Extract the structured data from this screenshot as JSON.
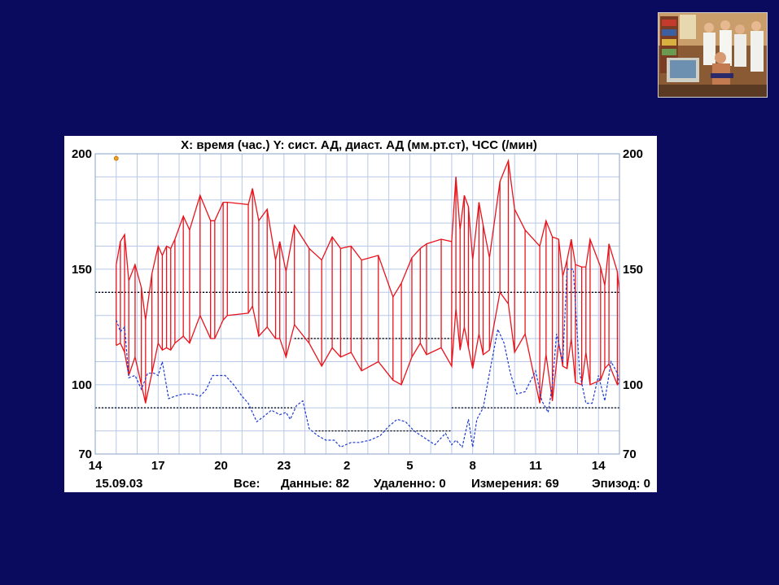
{
  "photo": {
    "icon": "doctors-with-patient-photo"
  },
  "chart_data": {
    "type": "line",
    "title": "X: время (час.)  Y: сист. АД, диаст. АД (мм.рт.ст), ЧСС (/мин)",
    "xlabel": "время (час.)",
    "ylabel": "сист. АД, диаст. АД (мм.рт.ст), ЧСС (/мин)",
    "ylim": [
      70,
      200
    ],
    "y_ticks": [
      70,
      100,
      150,
      200
    ],
    "x_ticks": [
      "14",
      "17",
      "20",
      "23",
      "2",
      "5",
      "8",
      "11",
      "14"
    ],
    "x_tick_hours": [
      14,
      17,
      20,
      23,
      26,
      29,
      32,
      35,
      38
    ],
    "xlim": [
      14,
      39
    ],
    "grid": true,
    "colors": {
      "bp": "#e8141c",
      "hr": "#1e3cd2",
      "threshold": "#000000",
      "marker": "#f0a020",
      "background": "#0a0a5e"
    },
    "footer": {
      "date": "15.09.03",
      "all": "Все:",
      "data_label": "Данные: 82",
      "deleted": "Удаленно: 0",
      "measurements": "Измерения: 69",
      "episode": "Эпизод: 0"
    },
    "marker_point": {
      "x": 15,
      "y": 198
    },
    "thresholds": [
      {
        "y": 140,
        "x": [
          14,
          23.5
        ]
      },
      {
        "y": 120,
        "x": [
          23.5,
          31
        ]
      },
      {
        "y": 140,
        "x": [
          31,
          39
        ]
      },
      {
        "y": 90,
        "x": [
          14,
          23.5
        ]
      },
      {
        "y": 80,
        "x": [
          24.5,
          31
        ]
      },
      {
        "y": 90,
        "x": [
          31,
          39
        ]
      }
    ],
    "series": [
      {
        "name": "сист. АД",
        "x": [
          15,
          15.2,
          15.4,
          15.6,
          15.9,
          16.2,
          16.4,
          16.7,
          17,
          17.2,
          17.4,
          17.6,
          17.8,
          18.2,
          18.5,
          19,
          19.5,
          19.7,
          20.1,
          20.3,
          21.3,
          21.5,
          21.8,
          22.2,
          22.6,
          22.8,
          23.1,
          23.5,
          24.2,
          24.8,
          25.3,
          25.7,
          26.2,
          26.7,
          27.5,
          28.2,
          28.6,
          29.1,
          29.5,
          29.8,
          30.5,
          31,
          31.2,
          31.4,
          31.6,
          31.8,
          32,
          32.3,
          32.5,
          32.8,
          33.3,
          33.7,
          34,
          34.5,
          35.2,
          35.5,
          35.8,
          36.1,
          36.3,
          36.5,
          36.7,
          36.9,
          37.2,
          37.4,
          37.6,
          38.1,
          38.3,
          38.5,
          38.9,
          39
        ],
        "values": [
          152,
          162,
          165,
          145,
          152,
          142,
          128,
          148,
          160,
          156,
          160,
          159,
          163,
          173,
          167,
          182,
          171,
          171,
          179,
          179,
          178,
          185,
          171,
          176,
          154,
          162,
          149,
          169,
          159,
          154,
          164,
          159,
          160,
          154,
          156,
          138,
          144,
          155,
          159,
          161,
          163,
          162,
          190,
          167,
          182,
          177,
          154,
          179,
          169,
          155,
          188,
          197,
          176,
          167,
          160,
          171,
          164,
          163,
          147,
          154,
          163,
          152,
          151,
          151,
          163,
          151,
          143,
          161,
          149,
          140
        ]
      },
      {
        "name": "диаст. АД",
        "x": [
          15,
          15.2,
          15.4,
          15.6,
          15.9,
          16.2,
          16.4,
          16.7,
          17,
          17.2,
          17.4,
          17.6,
          17.8,
          18.2,
          18.5,
          19,
          19.5,
          19.7,
          20.1,
          20.3,
          21.3,
          21.5,
          21.8,
          22.2,
          22.6,
          22.8,
          23.1,
          23.5,
          24.2,
          24.8,
          25.3,
          25.7,
          26.2,
          26.7,
          27.5,
          28.2,
          28.6,
          29.1,
          29.5,
          29.8,
          30.5,
          31,
          31.2,
          31.4,
          31.6,
          31.8,
          32,
          32.3,
          32.5,
          32.8,
          33.3,
          33.7,
          34,
          34.5,
          35.2,
          35.5,
          35.8,
          36.1,
          36.3,
          36.5,
          36.7,
          36.9,
          37.2,
          37.4,
          37.6,
          38.1,
          38.3,
          38.5,
          38.9,
          39
        ],
        "values": [
          117,
          118,
          114,
          104,
          112,
          100,
          92,
          105,
          118,
          115,
          116,
          115,
          118,
          121,
          118,
          130,
          120,
          120,
          128,
          130,
          131,
          134,
          121,
          125,
          120,
          120,
          112,
          126,
          118,
          108,
          116,
          112,
          114,
          106,
          110,
          102,
          100,
          112,
          118,
          113,
          116,
          108,
          133,
          115,
          125,
          116,
          107,
          122,
          113,
          115,
          140,
          135,
          114,
          122,
          92,
          113,
          93,
          118,
          108,
          107,
          120,
          101,
          100,
          114,
          100,
          102,
          107,
          109,
          100,
          101
        ]
      },
      {
        "name": "ЧСС",
        "x": [
          15,
          15.2,
          15.4,
          15.6,
          15.9,
          16.2,
          16.5,
          16.8,
          17,
          17.2,
          17.5,
          17.8,
          18.2,
          18.6,
          19,
          19.3,
          19.6,
          20.2,
          20.6,
          21,
          21.3,
          21.7,
          22,
          22.4,
          22.8,
          23.1,
          23.3,
          23.6,
          23.9,
          24.2,
          24.6,
          25,
          25.4,
          25.7,
          26.2,
          26.6,
          27.1,
          27.6,
          28,
          28.4,
          28.8,
          29.2,
          29.7,
          30.2,
          30.7,
          31,
          31.2,
          31.5,
          31.8,
          32,
          32.2,
          32.5,
          32.8,
          33.2,
          33.5,
          33.8,
          34.1,
          34.5,
          35,
          35.3,
          35.6,
          35.8,
          36,
          36.3,
          36.5,
          36.8,
          37.1,
          37.4,
          37.7,
          38,
          38.3,
          38.6,
          38.9,
          39
        ],
        "values": [
          128,
          123,
          125,
          103,
          104,
          98,
          105,
          105,
          104,
          110,
          94,
          95,
          96,
          96,
          95,
          98,
          104,
          104,
          100,
          95,
          92,
          84,
          86,
          89,
          87,
          88,
          85,
          91,
          93,
          81,
          78,
          76,
          76,
          73,
          75,
          75,
          76,
          78,
          82,
          85,
          84,
          80,
          77,
          74,
          79,
          74,
          76,
          73,
          85,
          73,
          85,
          90,
          105,
          124,
          118,
          105,
          96,
          97,
          106,
          93,
          88,
          100,
          122,
          110,
          150,
          150,
          105,
          92,
          92,
          104,
          93,
          110,
          105,
          100
        ]
      }
    ]
  }
}
